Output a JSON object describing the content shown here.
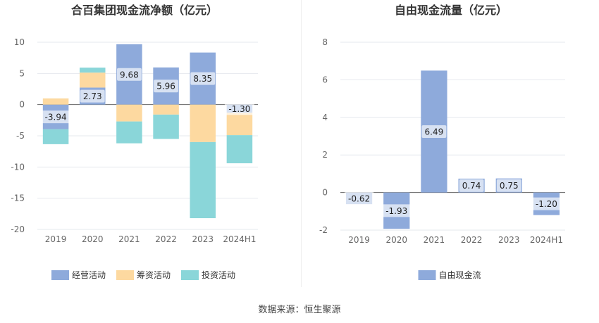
{
  "chart_data": [
    {
      "type": "bar",
      "stacked": true,
      "title": "合百集团现金流净额（亿元）",
      "categories": [
        "2019",
        "2020",
        "2021",
        "2022",
        "2023",
        "2024H1"
      ],
      "ylim": [
        -20,
        10
      ],
      "yticks": [
        10,
        5,
        0,
        -5,
        -10,
        -15,
        -20
      ],
      "grid": true,
      "legend_position": "bottom",
      "series": [
        {
          "name": "经营活动",
          "color": "#8eaadb",
          "values": [
            -3.94,
            2.73,
            9.68,
            5.96,
            8.35,
            -1.3
          ]
        },
        {
          "name": "筹资活动",
          "color": "#fdd9a0",
          "values": [
            1.0,
            2.4,
            -2.7,
            -1.6,
            -6.0,
            -3.6
          ]
        },
        {
          "name": "投资活动",
          "color": "#8ad6d9",
          "values": [
            -2.4,
            0.8,
            -3.5,
            -3.9,
            -12.2,
            -4.5
          ]
        }
      ],
      "data_labels": [
        "-3.94",
        "2.73",
        "9.68",
        "5.96",
        "8.35",
        "-1.30"
      ]
    },
    {
      "type": "bar",
      "title": "自由现金流量（亿元）",
      "categories": [
        "2019",
        "2020",
        "2021",
        "2022",
        "2023",
        "2024H1"
      ],
      "ylim": [
        -2,
        8
      ],
      "yticks": [
        8,
        6,
        4,
        2,
        0,
        -2
      ],
      "grid": true,
      "legend_position": "bottom",
      "series": [
        {
          "name": "自由现金流",
          "color": "#8eaadb",
          "values": [
            -0.62,
            -1.93,
            6.49,
            0.74,
            0.75,
            -1.2
          ]
        }
      ],
      "data_labels": [
        "-0.62",
        "-1.93",
        "6.49",
        "0.74",
        "0.75",
        "-1.20"
      ]
    }
  ],
  "footer": {
    "source": "数据来源：恒生聚源"
  }
}
